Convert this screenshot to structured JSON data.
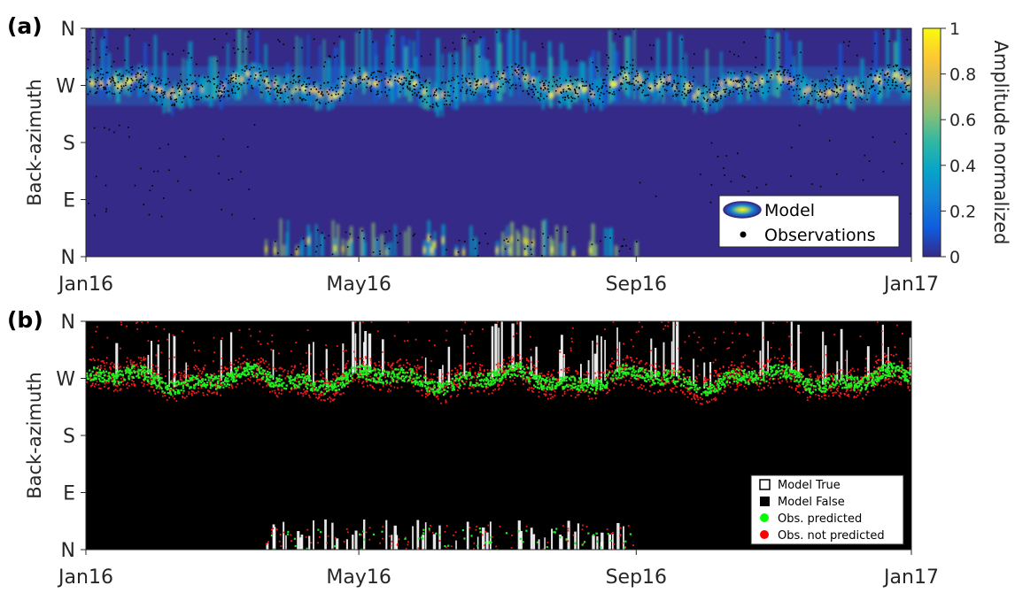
{
  "chart_data": [
    {
      "panel_label": "(a)",
      "type": "heatmap",
      "ylabel": "Back-azimuth",
      "x_ticks": [
        "Jan16",
        "May16",
        "Sep16",
        "Jan17"
      ],
      "x_tick_values": [
        "2016-01-01",
        "2016-05-01",
        "2016-09-01",
        "2017-01-01"
      ],
      "xlim": [
        "2016-01-01",
        "2017-01-01"
      ],
      "y_ticks": [
        "N",
        "W",
        "S",
        "E",
        "N"
      ],
      "y_tick_values_deg": [
        360,
        270,
        180,
        90,
        0
      ],
      "ylim": [
        0,
        360
      ],
      "colorbar": {
        "label": "Amplitude normalized",
        "range": [
          0,
          1
        ],
        "ticks": [
          "1",
          "0.8",
          "0.6",
          "0.4",
          "0.2",
          "0"
        ],
        "colormap": "parula",
        "colors": [
          "#352a87",
          "#0f5cdd",
          "#1481d6",
          "#06a4ca",
          "#2eb7a4",
          "#87bf77",
          "#d1bb59",
          "#fec832",
          "#f9fb0e"
        ]
      },
      "legend": {
        "position": "bottom-right",
        "entries": [
          {
            "label": "Model",
            "marker": "filled-contour-ellipse"
          },
          {
            "label": "Observations",
            "marker": "dot",
            "color": "#000000"
          }
        ]
      },
      "description_bands": [
        {
          "center_deg": 270,
          "spread_deg": 25,
          "period": "full-year",
          "intensity": "high"
        },
        {
          "center_deg": 20,
          "spread_deg": 20,
          "period": "2016-03-20 to 2016-09-01",
          "intensity": "medium"
        }
      ]
    },
    {
      "panel_label": "(b)",
      "type": "heatmap",
      "ylabel": "Back-azimuth",
      "x_ticks": [
        "Jan16",
        "May16",
        "Sep16",
        "Jan17"
      ],
      "x_tick_values": [
        "2016-01-01",
        "2016-05-01",
        "2016-09-01",
        "2017-01-01"
      ],
      "xlim": [
        "2016-01-01",
        "2017-01-01"
      ],
      "y_ticks": [
        "N",
        "W",
        "S",
        "E",
        "N"
      ],
      "y_tick_values_deg": [
        360,
        270,
        180,
        90,
        0
      ],
      "ylim": [
        0,
        360
      ],
      "legend": {
        "position": "bottom-right",
        "entries": [
          {
            "label": "Model True",
            "marker": "square-outline",
            "color": "#ffffff"
          },
          {
            "label": "Model False",
            "marker": "square-filled",
            "color": "#000000"
          },
          {
            "label": "Obs. predicted",
            "marker": "dot",
            "color": "#00ff00"
          },
          {
            "label": "Obs. not predicted",
            "marker": "dot",
            "color": "#ff0000"
          }
        ]
      },
      "colors": {
        "background": "#000000",
        "model_true": "#ffffff",
        "predicted": "#22ee22",
        "not_predicted": "#ff1a1a"
      }
    }
  ]
}
